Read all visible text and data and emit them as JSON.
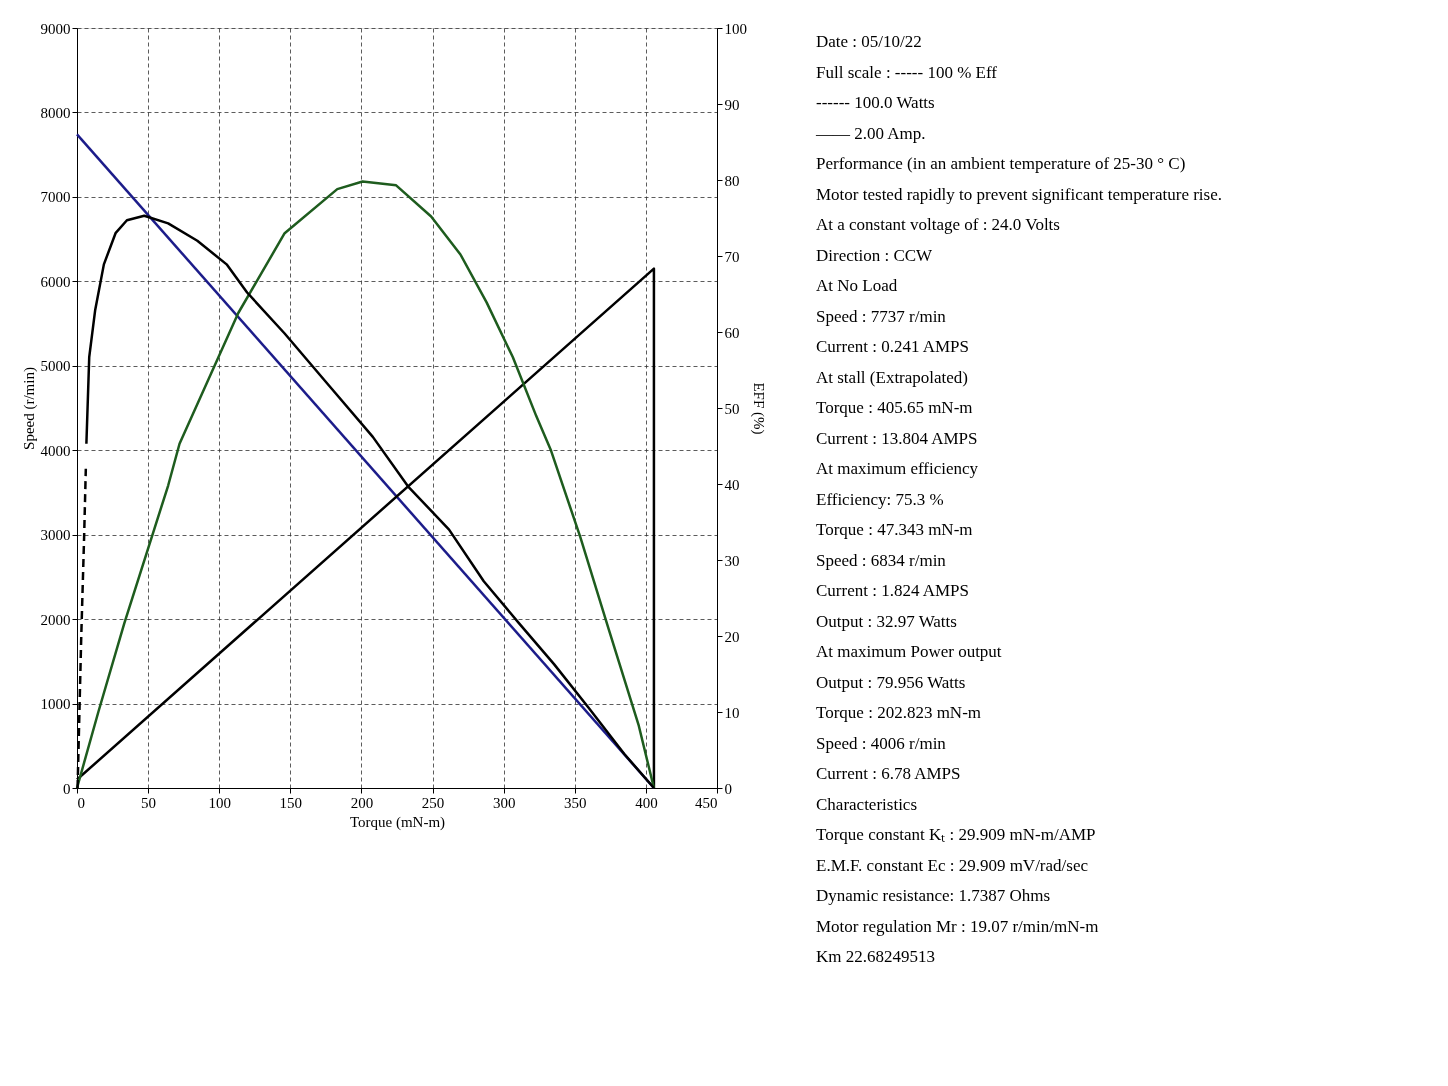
{
  "chart_data": {
    "type": "line",
    "xlabel": "Torque (mN-m)",
    "ylabel": "Speed (r/min)",
    "y2label": "EFF (%)",
    "xlim": [
      0,
      450
    ],
    "xticks": [
      0,
      50,
      100,
      150,
      200,
      250,
      300,
      350,
      400,
      450
    ],
    "ylim": [
      0,
      9000
    ],
    "yticks": [
      0,
      1000,
      2000,
      3000,
      4000,
      5000,
      6000,
      7000,
      8000,
      9000
    ],
    "y2lim": [
      0,
      100
    ],
    "y2ticks": [
      0,
      10,
      20,
      30,
      40,
      50,
      60,
      70,
      80,
      90,
      100
    ],
    "grid": true,
    "line_style": "solid",
    "series": [
      {
        "axis": "y",
        "color": "#1c1c8a",
        "x": [
          0,
          405.65
        ],
        "values": [
          7740,
          0
        ]
      },
      {
        "axis": "y",
        "color": "#000000",
        "x": [
          0,
          405.65,
          405.65
        ],
        "values": [
          100,
          6150,
          0
        ]
      },
      {
        "axis": "y2",
        "color": "#1e5c1e",
        "x": [
          0,
          15,
          33.3,
          64.1,
          72.1,
          113.4,
          146,
          183,
          200.8,
          224.4,
          249,
          269.6,
          288,
          306.4,
          323,
          333.3,
          353.9,
          374,
          395,
          405.65
        ],
        "values": [
          0,
          10,
          21.7,
          39.8,
          45.3,
          62.5,
          73,
          78.8,
          79.8,
          79.3,
          75.2,
          70.2,
          63.9,
          56.7,
          48.9,
          44.4,
          33,
          20.8,
          8.2,
          0
        ]
      },
      {
        "axis": "y2",
        "color": "#000000",
        "x": [
          6.6,
          8.6,
          12.8,
          18.9,
          27.1,
          35.1,
          47.3,
          64.1,
          84.6,
          105.2,
          119.6,
          146,
          177,
          208,
          232.7,
          261.6,
          286,
          310.7,
          335.4,
          360,
          384.7,
          405.65
        ],
        "values": [
          45.3,
          56.7,
          62.9,
          68.9,
          73,
          74.7,
          75.3,
          74.3,
          72,
          68.9,
          65.2,
          59.8,
          53,
          46.2,
          39.7,
          34,
          27.2,
          21.7,
          16.3,
          10.5,
          4.5,
          0
        ]
      },
      {
        "axis": "y2",
        "color": "#000000",
        "line_style": "dashed",
        "x": [
          0.4,
          3,
          5,
          6.2
        ],
        "values": [
          0,
          20,
          33,
          42
        ]
      }
    ],
    "annotations": [
      "Date : 05/10/22",
      "Full scale : ----- 100 % Eff",
      "------ 100.0 Watts",
      "—— 2.00 Amp.",
      "Performance (in an ambient temperature of 25-30 ° C)",
      "Motor tested rapidly to prevent significant temperature rise.",
      "At a constant voltage of : 24.0 Volts",
      "Direction : CCW",
      "At No Load",
      "Speed : 7737 r/min",
      "Current : 0.241 AMPS",
      "At stall (Extrapolated)",
      "Torque : 405.65 mN-m",
      "Current : 13.804 AMPS",
      "At maximum efficiency",
      "Efficiency: 75.3 %",
      "Torque : 47.343 mN-m",
      "Speed : 6834 r/min",
      "Current : 1.824 AMPS",
      "Output : 32.97 Watts",
      "At maximum Power output",
      "Output : 79.956 Watts",
      "Torque : 202.823 mN-m",
      "Speed : 4006 r/min",
      "Current : 6.78 AMPS",
      "Characteristics",
      "Torque constant Kₜ : 29.909 mN-m/AMP",
      "E.M.F. constant Ec : 29.909 mV/rad/sec",
      "Dynamic resistance: 1.7387 Ohms",
      "Motor regulation Mr : 19.07 r/min/mN-m",
      "Km 22.68249513"
    ]
  }
}
